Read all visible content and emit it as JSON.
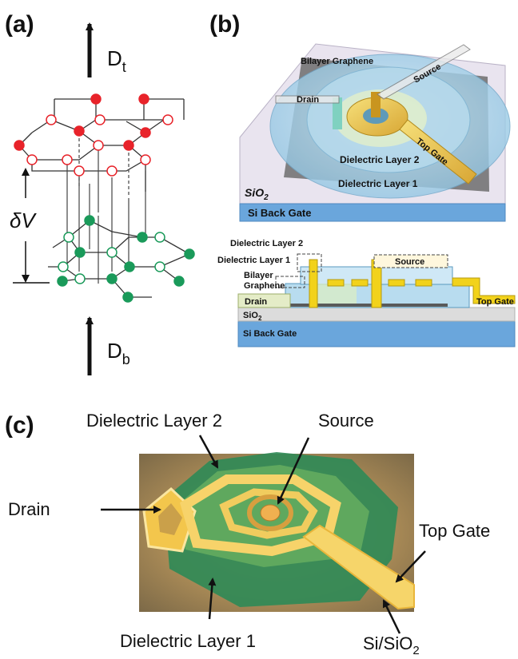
{
  "panels": {
    "a": {
      "label": "(a)",
      "arrow_top_label": "D",
      "arrow_top_sub": "t",
      "arrow_bottom_label": "D",
      "arrow_bottom_sub": "b",
      "gap_label": "δV",
      "colors": {
        "top_layer": "#e8232a",
        "bottom_layer": "#1a9a5a",
        "bond": "#333333"
      }
    },
    "b": {
      "label": "(b)",
      "iso": {
        "bilayer": "Bilayer Graphene",
        "source": "Source",
        "drain": "Drain",
        "top_gate": "Top Gate",
        "dl2": "Dielectric Layer 2",
        "dl1": "Dielectric Layer 1",
        "sio2": "SiO",
        "sio2_sub": "2",
        "backgate": "Si Back Gate"
      },
      "cross": {
        "dl2": "Dielectric Layer 2",
        "dl1": "Dielectric Layer 1",
        "bilayer_1": "Bilayer",
        "bilayer_2": "Graphene",
        "drain": "Drain",
        "source": "Source",
        "top_gate": "Top Gate",
        "sio2": "SiO",
        "sio2_sub": "2",
        "backgate": "Si Back Gate"
      }
    },
    "c": {
      "label": "(c)",
      "dl2": "Dielectric Layer 2",
      "source": "Source",
      "drain": "Drain",
      "top_gate": "Top Gate",
      "dl1": "Dielectric Layer 1",
      "sisio2": "Si/SiO",
      "sisio2_sub": "2"
    }
  }
}
